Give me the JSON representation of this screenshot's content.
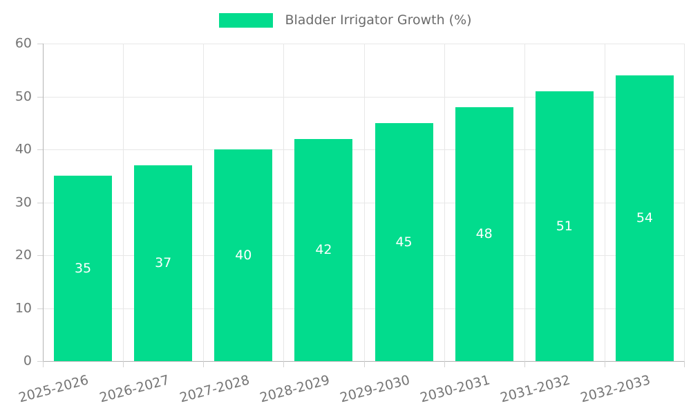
{
  "chart_data": {
    "type": "bar",
    "title": "Bladder Irrigator Growth (%)",
    "categories": [
      "2025-2026",
      "2026-2027",
      "2027-2028",
      "2028-2029",
      "2029-2030",
      "2030-2031",
      "2031-2032",
      "2032-2033"
    ],
    "values": [
      35,
      37,
      40,
      42,
      45,
      48,
      51,
      54
    ],
    "xlabel": "",
    "ylabel": "",
    "ylim": [
      0,
      60
    ],
    "ytick_step": 10,
    "yticks": [
      "0",
      "10",
      "20",
      "30",
      "40",
      "50",
      "60"
    ],
    "grid": true,
    "legend_position": "top-center",
    "value_labels_inside_bars": true,
    "colors": {
      "bar": "#02DC8D",
      "bar_label_text": "#ffffff",
      "grid_line": "#e7e7e7",
      "axis_line": "#b3b3b3",
      "tick_mark": "#d2d2d2",
      "tick_text": "#757575",
      "legend_text": "#6b6b6b",
      "background": "#ffffff"
    }
  }
}
